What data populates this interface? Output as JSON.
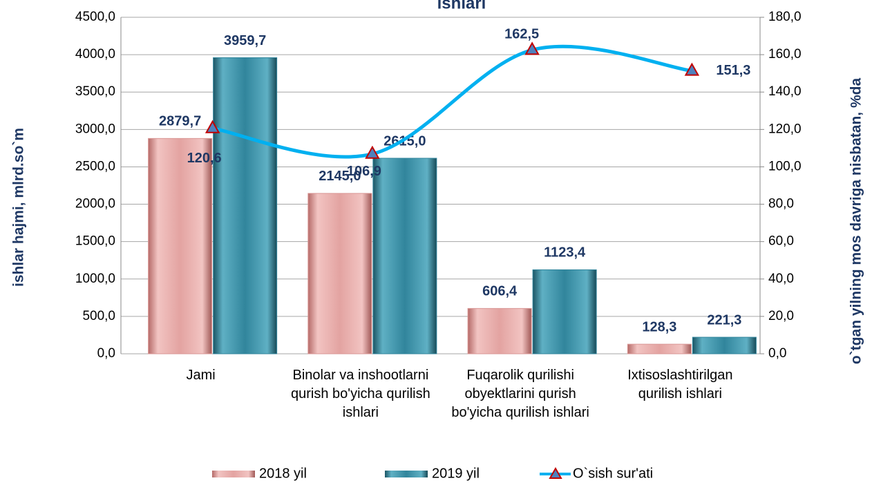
{
  "chart_data": {
    "type": "bar",
    "title": "ishlari",
    "ylabel": "ishlar hajmi, mlrd.so`m",
    "y2label": "o`tgan yilning mos davriga nisbatan, %da",
    "categories": [
      "Jami",
      "Binolar va inshootlarni qurish bo'yicha qurilish ishlari",
      "Fuqarolik qurilishi obyektlarini qurish bo'yicha qurilish ishlari",
      "Ixtisoslashtirilgan qurilish ishlari"
    ],
    "series": [
      {
        "name": "2018 yil",
        "color": "#d99694",
        "values": [
          2879.7,
          2145.0,
          606.4,
          128.3
        ],
        "value_labels": [
          "2879,7",
          "2145,0",
          "606,4",
          "128,3"
        ]
      },
      {
        "name": "2019 yil",
        "color": "#31859c",
        "values": [
          3959.7,
          2615.0,
          1123.4,
          221.3
        ],
        "value_labels": [
          "3959,7",
          "2615,0",
          "1123,4",
          "221,3"
        ]
      },
      {
        "name": "O`sish sur'ati",
        "type": "line",
        "axis": "y2",
        "color": "#00b0f0",
        "marker_color": "#c00000",
        "values": [
          120.6,
          106.9,
          162.5,
          151.3
        ],
        "value_labels": [
          "120,6",
          "106,9",
          "162,5",
          "151,3"
        ]
      }
    ],
    "ylim": [
      0,
      4500
    ],
    "yticks": [
      {
        "value": 0,
        "label": "0,0"
      },
      {
        "value": 500,
        "label": "500,0"
      },
      {
        "value": 1000,
        "label": "1000,0"
      },
      {
        "value": 1500,
        "label": "1500,0"
      },
      {
        "value": 2000,
        "label": "2000,0"
      },
      {
        "value": 2500,
        "label": "2500,0"
      },
      {
        "value": 3000,
        "label": "3000,0"
      },
      {
        "value": 3500,
        "label": "3500,0"
      },
      {
        "value": 4000,
        "label": "4000,0"
      },
      {
        "value": 4500,
        "label": "4500,0"
      }
    ],
    "y2lim": [
      0,
      180
    ],
    "y2ticks": [
      {
        "value": 0,
        "label": "0,0"
      },
      {
        "value": 20,
        "label": "20,0"
      },
      {
        "value": 40,
        "label": "40,0"
      },
      {
        "value": 60,
        "label": "60,0"
      },
      {
        "value": 80,
        "label": "80,0"
      },
      {
        "value": 100,
        "label": "100,0"
      },
      {
        "value": 120,
        "label": "120,0"
      },
      {
        "value": 140,
        "label": "140,0"
      },
      {
        "value": 160,
        "label": "160,0"
      },
      {
        "value": 180,
        "label": "180,0"
      }
    ],
    "grid": true,
    "legend": "bottom"
  }
}
